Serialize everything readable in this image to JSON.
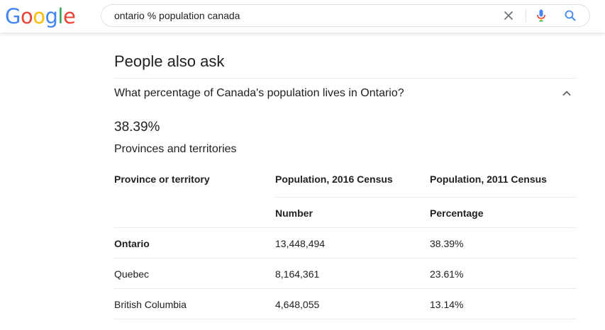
{
  "logo": {
    "letters": [
      "G",
      "o",
      "o",
      "g",
      "l",
      "e"
    ],
    "colors": [
      "#4285F4",
      "#EA4335",
      "#FBBC05",
      "#4285F4",
      "#34A853",
      "#EA4335"
    ]
  },
  "search": {
    "query": "ontario % population canada",
    "clear_icon": "close-icon",
    "mic_icon": "microphone-icon",
    "search_icon": "search-icon"
  },
  "people_also_ask": {
    "title": "People also ask",
    "question": "What percentage of Canada's population lives in Ontario?",
    "expanded_icon": "chevron-up-icon",
    "answer": "38.39%",
    "table_caption": "Provinces and territories",
    "table": {
      "headers": [
        "Province or territory",
        "Population, 2016 Census",
        "Population, 2011 Census"
      ],
      "subheaders": [
        "",
        "Number",
        "Percentage"
      ],
      "rows": [
        {
          "name": "Ontario",
          "number": "13,448,494",
          "percentage": "38.39%",
          "highlight": true
        },
        {
          "name": "Quebec",
          "number": "8,164,361",
          "percentage": "23.61%",
          "highlight": false
        },
        {
          "name": "British Columbia",
          "number": "4,648,055",
          "percentage": "13.14%",
          "highlight": false
        }
      ]
    }
  }
}
